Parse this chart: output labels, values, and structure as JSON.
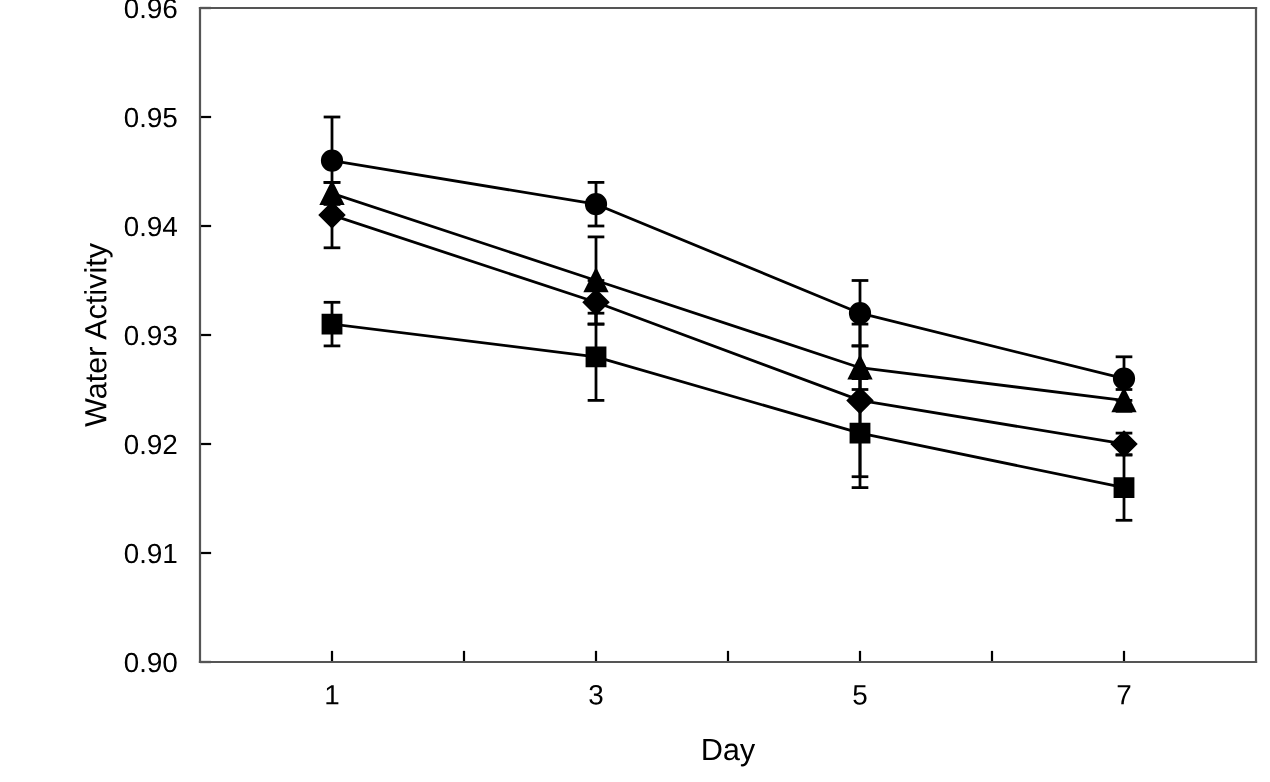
{
  "chart_data": {
    "type": "line",
    "xlabel": "Day",
    "ylabel": "Water Activity",
    "x": [
      1,
      3,
      5,
      7
    ],
    "xlim": [
      0,
      8
    ],
    "xticks": [
      {
        "value": 1,
        "label": "1"
      },
      {
        "value": 2,
        "label": null
      },
      {
        "value": 3,
        "label": "3"
      },
      {
        "value": 4,
        "label": null
      },
      {
        "value": 5,
        "label": "5"
      },
      {
        "value": 6,
        "label": null
      },
      {
        "value": 7,
        "label": "7"
      }
    ],
    "ylim": [
      0.9,
      0.96
    ],
    "yticks": [
      {
        "value": 0.9,
        "label": "0.90"
      },
      {
        "value": 0.91,
        "label": "0.91"
      },
      {
        "value": 0.92,
        "label": "0.92"
      },
      {
        "value": 0.93,
        "label": "0.93"
      },
      {
        "value": 0.94,
        "label": "0.94"
      },
      {
        "value": 0.95,
        "label": "0.95"
      },
      {
        "value": 0.96,
        "label": "0.96"
      }
    ],
    "grid": false,
    "legend": false,
    "line_style": "solid",
    "series": [
      {
        "color": "#000000",
        "marker": "circle",
        "values": [
          0.946,
          0.942,
          0.932,
          0.926
        ],
        "errors": [
          0.004,
          0.002,
          0.003,
          0.002
        ]
      },
      {
        "color": "#000000",
        "marker": "triangle",
        "values": [
          0.943,
          0.935,
          0.927,
          0.924
        ],
        "errors": [
          0.001,
          0.004,
          0.002,
          0.001
        ]
      },
      {
        "color": "#000000",
        "marker": "diamond",
        "values": [
          0.941,
          0.933,
          0.924,
          0.92
        ],
        "errors": [
          0.003,
          0.002,
          0.007,
          0.001
        ]
      },
      {
        "color": "#000000",
        "marker": "square",
        "values": [
          0.931,
          0.928,
          0.921,
          0.916
        ],
        "errors": [
          0.002,
          0.004,
          0.005,
          0.003
        ]
      }
    ]
  }
}
